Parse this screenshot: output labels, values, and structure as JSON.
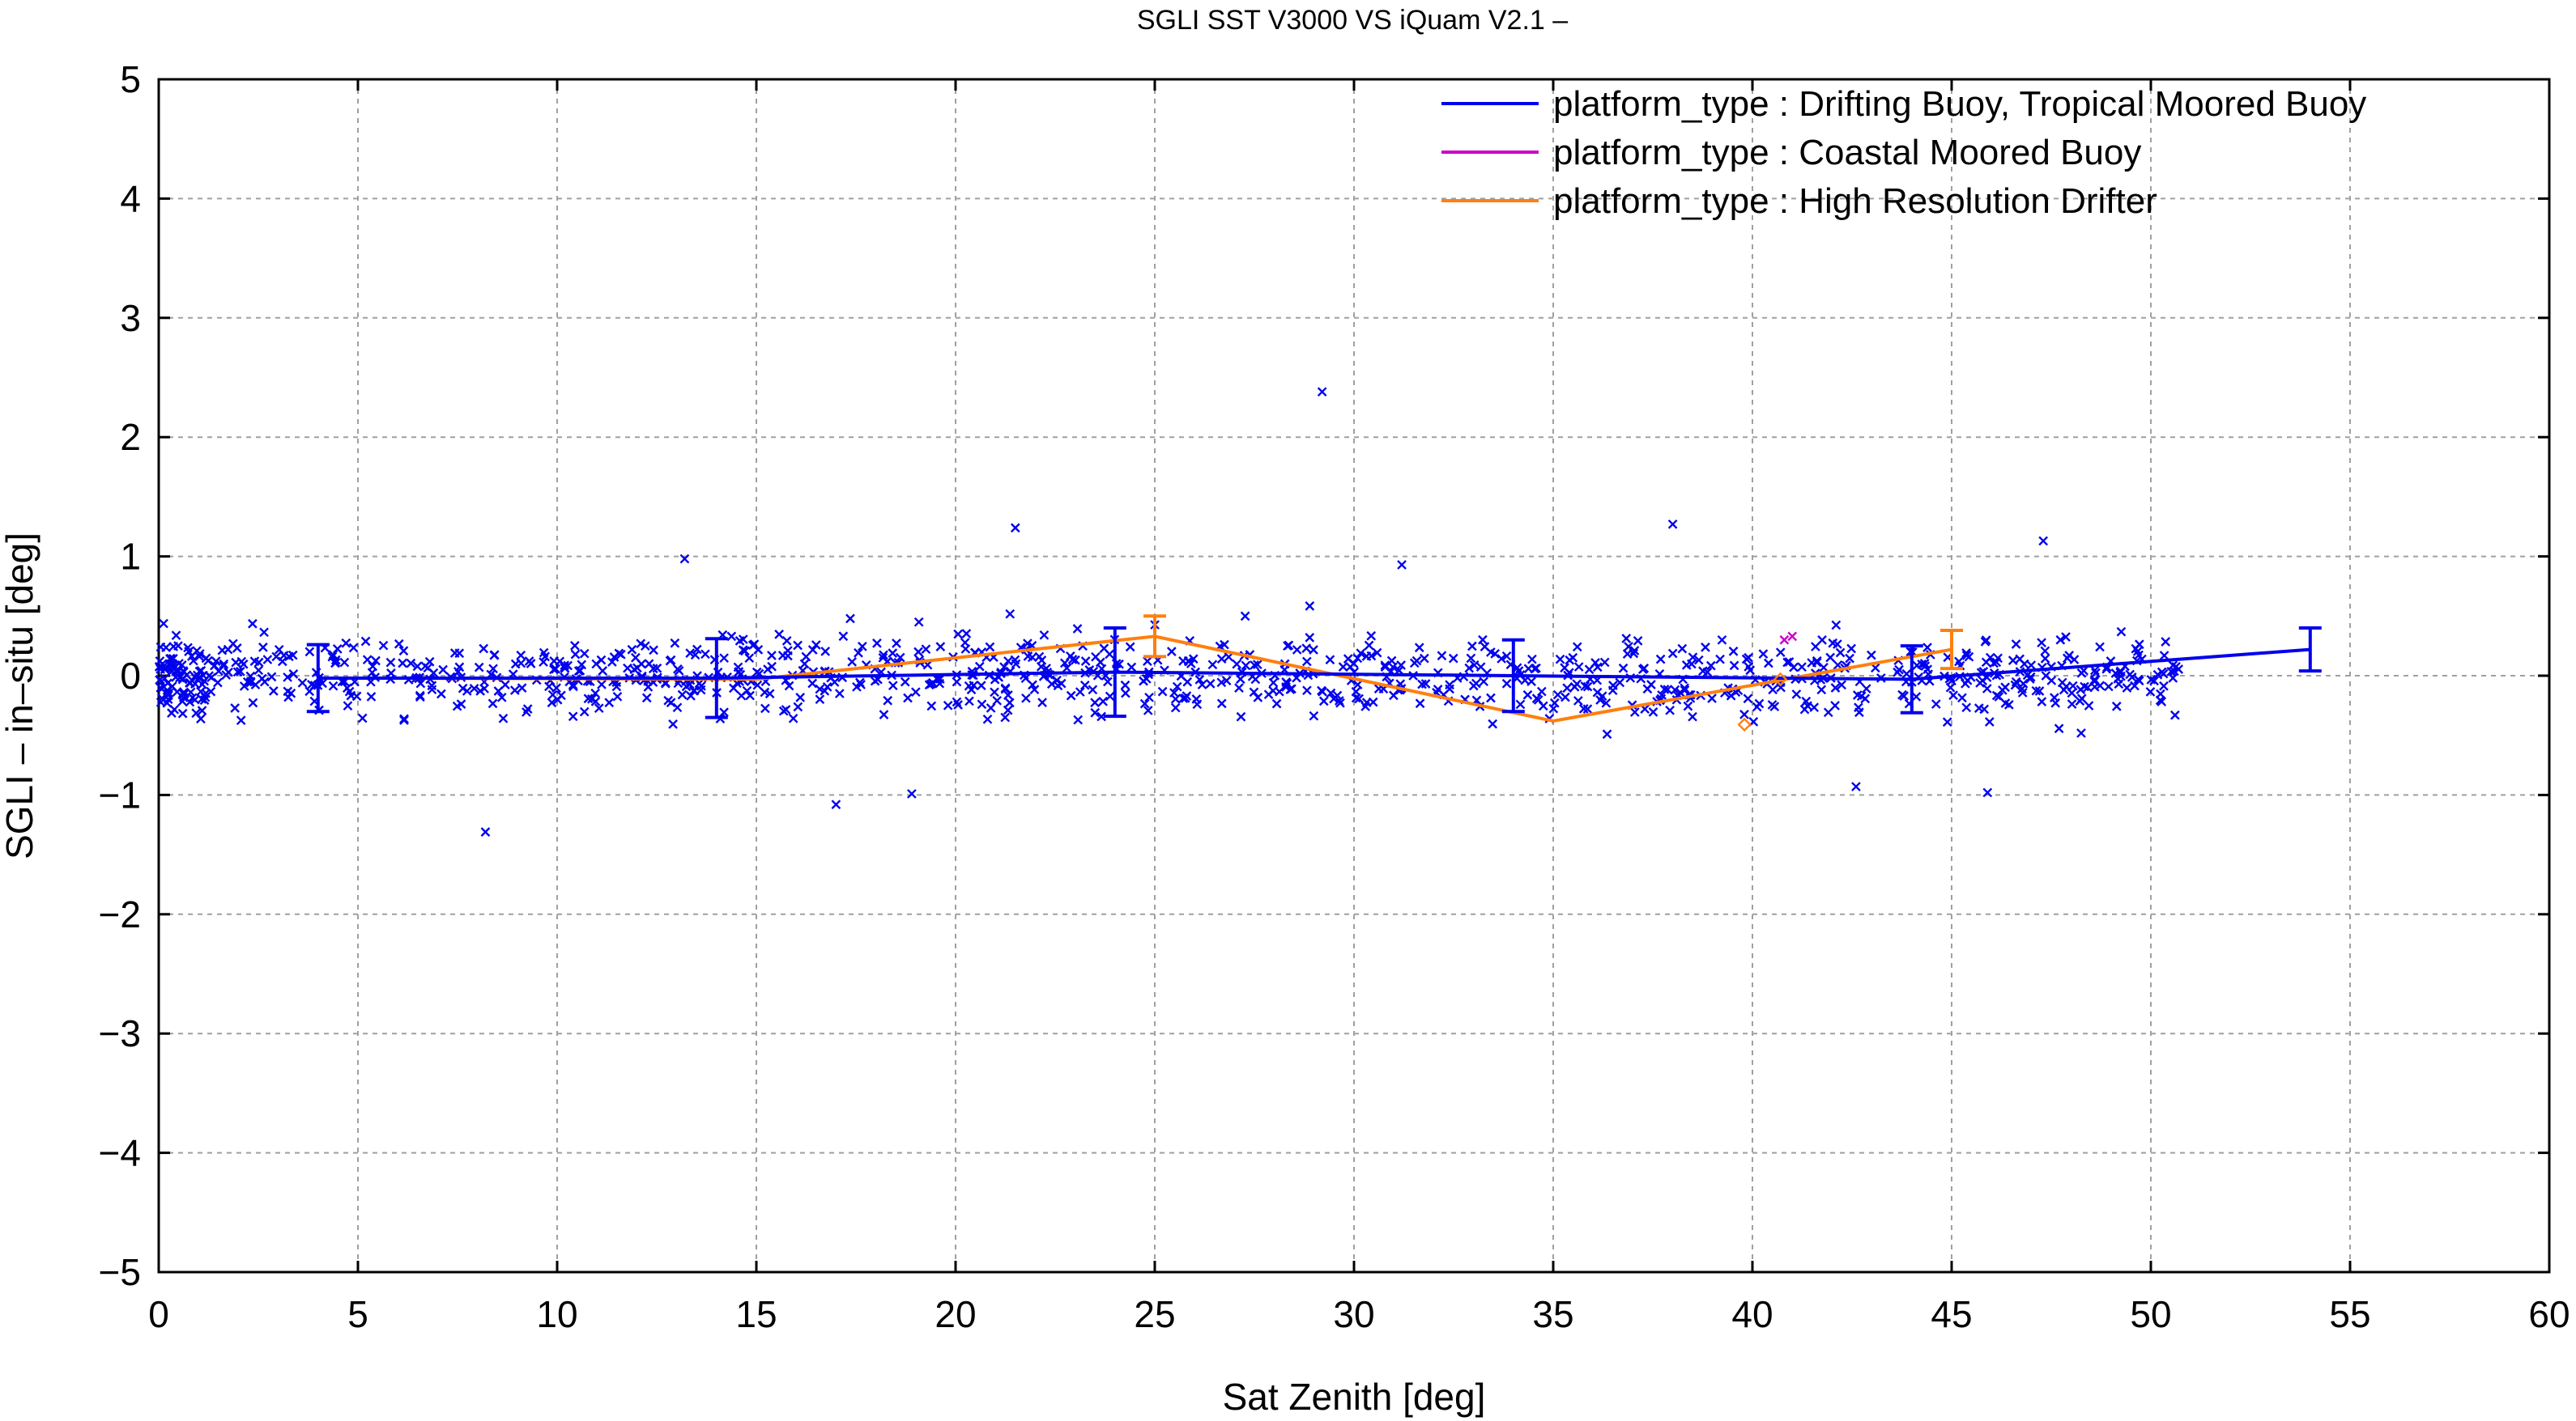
{
  "chart_data": {
    "type": "scatter",
    "title": "SGLI SST V3000 VS iQuam V2.1  –",
    "xlabel": "Sat Zenith [deg]",
    "ylabel": "SGLI – in–situ [deg]",
    "xlim": [
      0,
      60
    ],
    "ylim": [
      -5,
      5
    ],
    "xticks": [
      0,
      5,
      10,
      15,
      20,
      25,
      30,
      35,
      40,
      45,
      50,
      55,
      60
    ],
    "xtick_labels": [
      "0",
      "5",
      "10",
      "15",
      "20",
      "25",
      "30",
      "35",
      "40",
      "45",
      "50",
      "55",
      "60"
    ],
    "yticks": [
      -5,
      -4,
      -3,
      -2,
      -1,
      0,
      1,
      2,
      3,
      4,
      5
    ],
    "ytick_labels": [
      "−5",
      "−4",
      "−3",
      "−2",
      "−1",
      "0",
      "1",
      "2",
      "3",
      "4",
      "5"
    ],
    "grid": true,
    "legend_position": "top-right",
    "series": [
      {
        "name": "platform_type : Drifting Buoy, Tropical Moored Buoy",
        "color": "#0000ee",
        "bins": [
          {
            "x": 4,
            "y": -0.02,
            "err": 0.28
          },
          {
            "x": 14,
            "y": -0.02,
            "err": 0.33
          },
          {
            "x": 24,
            "y": 0.03,
            "err": 0.37
          },
          {
            "x": 34,
            "y": 0.0,
            "err": 0.3
          },
          {
            "x": 44,
            "y": -0.03,
            "err": 0.28
          },
          {
            "x": 54,
            "y": 0.22,
            "err": 0.18
          }
        ],
        "outliers": [
          {
            "x": 29.2,
            "y": 2.38
          },
          {
            "x": 38.0,
            "y": 1.27
          },
          {
            "x": 21.5,
            "y": 1.24
          },
          {
            "x": 47.3,
            "y": 1.13
          },
          {
            "x": 13.2,
            "y": 0.98
          },
          {
            "x": 31.2,
            "y": 0.93
          },
          {
            "x": 8.2,
            "y": -1.31
          },
          {
            "x": 17.0,
            "y": -1.08
          },
          {
            "x": 18.9,
            "y": -0.99
          },
          {
            "x": 45.9,
            "y": -0.98
          },
          {
            "x": 42.6,
            "y": -0.93
          }
        ]
      },
      {
        "name": "platform_type : Coastal Moored Buoy",
        "color": "#cc00cc",
        "points": [
          {
            "x": 40.8,
            "y": 0.3
          },
          {
            "x": 41.0,
            "y": 0.33
          }
        ]
      },
      {
        "name": "platform_type : High Resolution Drifter",
        "color": "#ff7f0e",
        "bins": [
          {
            "x": 5,
            "y": -0.02,
            "err": null
          },
          {
            "x": 15,
            "y": -0.03,
            "err": null
          },
          {
            "x": 25,
            "y": 0.33,
            "err": 0.17
          },
          {
            "x": 35,
            "y": -0.38,
            "err": null
          },
          {
            "x": 45,
            "y": 0.22,
            "err": 0.16
          }
        ],
        "points": [
          {
            "x": 39.8,
            "y": -0.41
          },
          {
            "x": 40.7,
            "y": -0.03
          }
        ]
      }
    ]
  }
}
